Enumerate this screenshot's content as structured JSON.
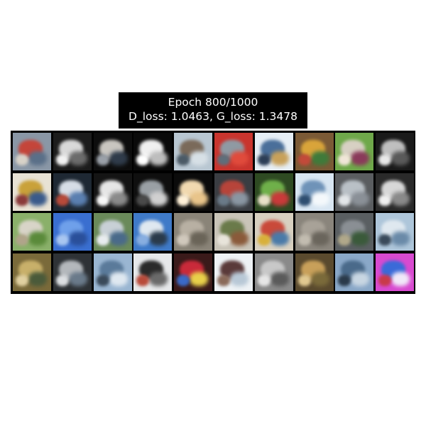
{
  "title": {
    "line1": "Epoch 800/1000",
    "line2": "D_loss: 1.0463, G_loss: 1.3478"
  },
  "grid": {
    "rows": 4,
    "cols": 10,
    "tiles": [
      {
        "bg": "#8a97a6",
        "a": "#c4453a",
        "b": "#5a6f88",
        "c": "#d8d2c8"
      },
      {
        "bg": "#1c1c1c",
        "a": "#d9d9d9",
        "b": "#6b6b6b",
        "c": "#f2f2f2"
      },
      {
        "bg": "#0d0d0d",
        "a": "#c9c6c0",
        "b": "#2f3b4a",
        "c": "#9aa0a8"
      },
      {
        "bg": "#0a0a0a",
        "a": "#f0f0f0",
        "b": "#bdbdbd",
        "c": "#ffffff"
      },
      {
        "bg": "#b9c7d2",
        "a": "#7a6a5a",
        "b": "#d7e0e6",
        "c": "#4b5a66"
      },
      {
        "bg": "#c9352e",
        "a": "#8f9aa3",
        "b": "#e04b3c",
        "c": "#5f6e7a"
      },
      {
        "bg": "#e6eef5",
        "a": "#4a6f9a",
        "b": "#c8a15a",
        "c": "#2c3e56"
      },
      {
        "bg": "#7b5a36",
        "a": "#d9a43a",
        "b": "#3f7a3a",
        "c": "#c24a3a"
      },
      {
        "bg": "#6fa84a",
        "a": "#d7d0c3",
        "b": "#8a3a5a",
        "c": "#f0e6d8"
      },
      {
        "bg": "#1a1a1a",
        "a": "#bfbfbf",
        "b": "#5a5a5a",
        "c": "#e8e8e8"
      },
      {
        "bg": "#e8e2d4",
        "a": "#c9a13a",
        "b": "#3a5a8a",
        "c": "#8a3a3a"
      },
      {
        "bg": "#1e2833",
        "a": "#d6dde6",
        "b": "#5a7fb0",
        "c": "#b84a3a"
      },
      {
        "bg": "#141414",
        "a": "#e6e6e6",
        "b": "#8a8a8a",
        "c": "#f7f7f7"
      },
      {
        "bg": "#0f0f0f",
        "a": "#9aa0a5",
        "b": "#d0d0d0",
        "c": "#4a4a4a"
      },
      {
        "bg": "#0b0b0b",
        "a": "#f1d9b0",
        "b": "#e8c48a",
        "c": "#fff1d8"
      },
      {
        "bg": "#3a3d42",
        "a": "#b7443a",
        "b": "#8a96a2",
        "c": "#6a7a88"
      },
      {
        "bg": "#2e4a22",
        "a": "#6fb04a",
        "b": "#c93a3a",
        "c": "#e8e0c8"
      },
      {
        "bg": "#d8e6f2",
        "a": "#6f93b8",
        "b": "#f4f8fb",
        "c": "#2e4e70"
      },
      {
        "bg": "#5a5d60",
        "a": "#b9c0c6",
        "b": "#8a9097",
        "c": "#e2e6e9"
      },
      {
        "bg": "#2a2a2a",
        "a": "#d8d8d8",
        "b": "#8a8a8a",
        "c": "#f0f0f0"
      },
      {
        "bg": "#8ab06a",
        "a": "#d8d4c8",
        "b": "#5a8a3a",
        "c": "#b0a48a"
      },
      {
        "bg": "#3a6fd0",
        "a": "#6fa0ea",
        "b": "#2a4f9a",
        "c": "#a8c6f0"
      },
      {
        "bg": "#6a8a5a",
        "a": "#c8d0d6",
        "b": "#4a6a8a",
        "c": "#e8ecef"
      },
      {
        "bg": "#3f7ac8",
        "a": "#dfe8f0",
        "b": "#2a3a4a",
        "c": "#88aee0"
      },
      {
        "bg": "#8a8478",
        "a": "#b8b0a3",
        "b": "#6a6458",
        "c": "#d0c8bc"
      },
      {
        "bg": "#c9c4b8",
        "a": "#6a7a4a",
        "b": "#8a5a3a",
        "c": "#e8e4da"
      },
      {
        "bg": "#d8d0c0",
        "a": "#c94a3a",
        "b": "#4a7aa8",
        "c": "#d8b03a"
      },
      {
        "bg": "#8a857c",
        "a": "#a8a298",
        "b": "#6a655c",
        "c": "#c2bcb0"
      },
      {
        "bg": "#5a5f62",
        "a": "#8a8f94",
        "b": "#3a5a3a",
        "c": "#b0a88a"
      },
      {
        "bg": "#aec6da",
        "a": "#dfe8ef",
        "b": "#6a8aa8",
        "c": "#3a4a5a"
      },
      {
        "bg": "#7a6a3a",
        "a": "#c8b06a",
        "b": "#4a5a3a",
        "c": "#e0d0a0"
      },
      {
        "bg": "#2e3236",
        "a": "#b4b8bc",
        "b": "#6a7a8a",
        "c": "#dcdfe2"
      },
      {
        "bg": "#9ab6d2",
        "a": "#5a7a9a",
        "b": "#dfe8f0",
        "c": "#3a4a5a"
      },
      {
        "bg": "#e6e8ea",
        "a": "#2a2a2a",
        "b": "#6a6a6a",
        "c": "#b84a3a"
      },
      {
        "bg": "#3a1a1a",
        "a": "#c92a3a",
        "b": "#e8d04a",
        "c": "#3a6ac8"
      },
      {
        "bg": "#eef2f5",
        "a": "#5a3a3a",
        "b": "#b8c8d6",
        "c": "#8a6a5a"
      },
      {
        "bg": "#8a8a8a",
        "a": "#c8c8c8",
        "b": "#5a5a5a",
        "c": "#e6e6e6"
      },
      {
        "bg": "#5a4a2e",
        "a": "#c8a05a",
        "b": "#7a6a3a",
        "c": "#e0c890"
      },
      {
        "bg": "#8aa8c8",
        "a": "#4a6a8a",
        "b": "#c8d6e2",
        "c": "#2a3a4a"
      },
      {
        "bg": "#d84ad0",
        "a": "#3a6ad8",
        "b": "#f0e8f8",
        "c": "#c83a4a"
      }
    ]
  }
}
